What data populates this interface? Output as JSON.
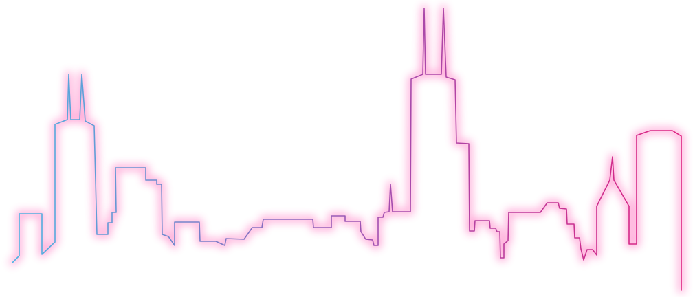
{
  "art": {
    "subject": "city-skyline-outline",
    "line_gradient": {
      "start": "#4ab8e4",
      "middle": "#a24fb0",
      "end": "#e0207e"
    },
    "glow_color": "#ff3fa8",
    "background": "#ffffff"
  }
}
